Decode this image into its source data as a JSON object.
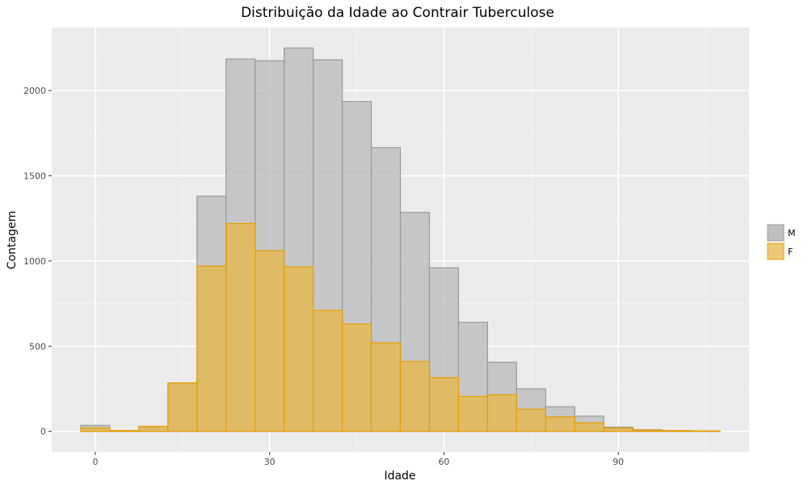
{
  "chart_data": {
    "type": "bar",
    "title": "Distribuição da Idade ao Contrair Tuberculose",
    "xlabel": "Idade",
    "ylabel": "Contagem",
    "xlim": [
      -7.5,
      112.5
    ],
    "ylim": [
      -120,
      2370
    ],
    "x_ticks": [
      0,
      30,
      60,
      90
    ],
    "y_ticks": [
      0,
      500,
      1000,
      1500,
      2000
    ],
    "bin_width": 5,
    "grid": true,
    "legend_position": "right",
    "colors": {
      "panel": "#ebebeb",
      "grid_major": "#ffffff",
      "M_fill": "#bfbfbf",
      "M_stroke": "#999999",
      "F_fill": "#e6b84d",
      "F_stroke": "#e69f00"
    },
    "bins": [
      0,
      5,
      10,
      15,
      20,
      25,
      30,
      35,
      40,
      45,
      50,
      55,
      60,
      65,
      70,
      75,
      80,
      85,
      90,
      95,
      100,
      105
    ],
    "series": [
      {
        "name": "M",
        "values": [
          35,
          5,
          25,
          280,
          1380,
          2185,
          2175,
          2250,
          2180,
          1935,
          1665,
          1285,
          960,
          640,
          405,
          250,
          145,
          90,
          25,
          10,
          5,
          3
        ]
      },
      {
        "name": "F",
        "values": [
          20,
          5,
          30,
          285,
          970,
          1220,
          1060,
          965,
          710,
          630,
          520,
          410,
          315,
          205,
          215,
          130,
          85,
          50,
          20,
          8,
          5,
          3
        ]
      }
    ]
  }
}
